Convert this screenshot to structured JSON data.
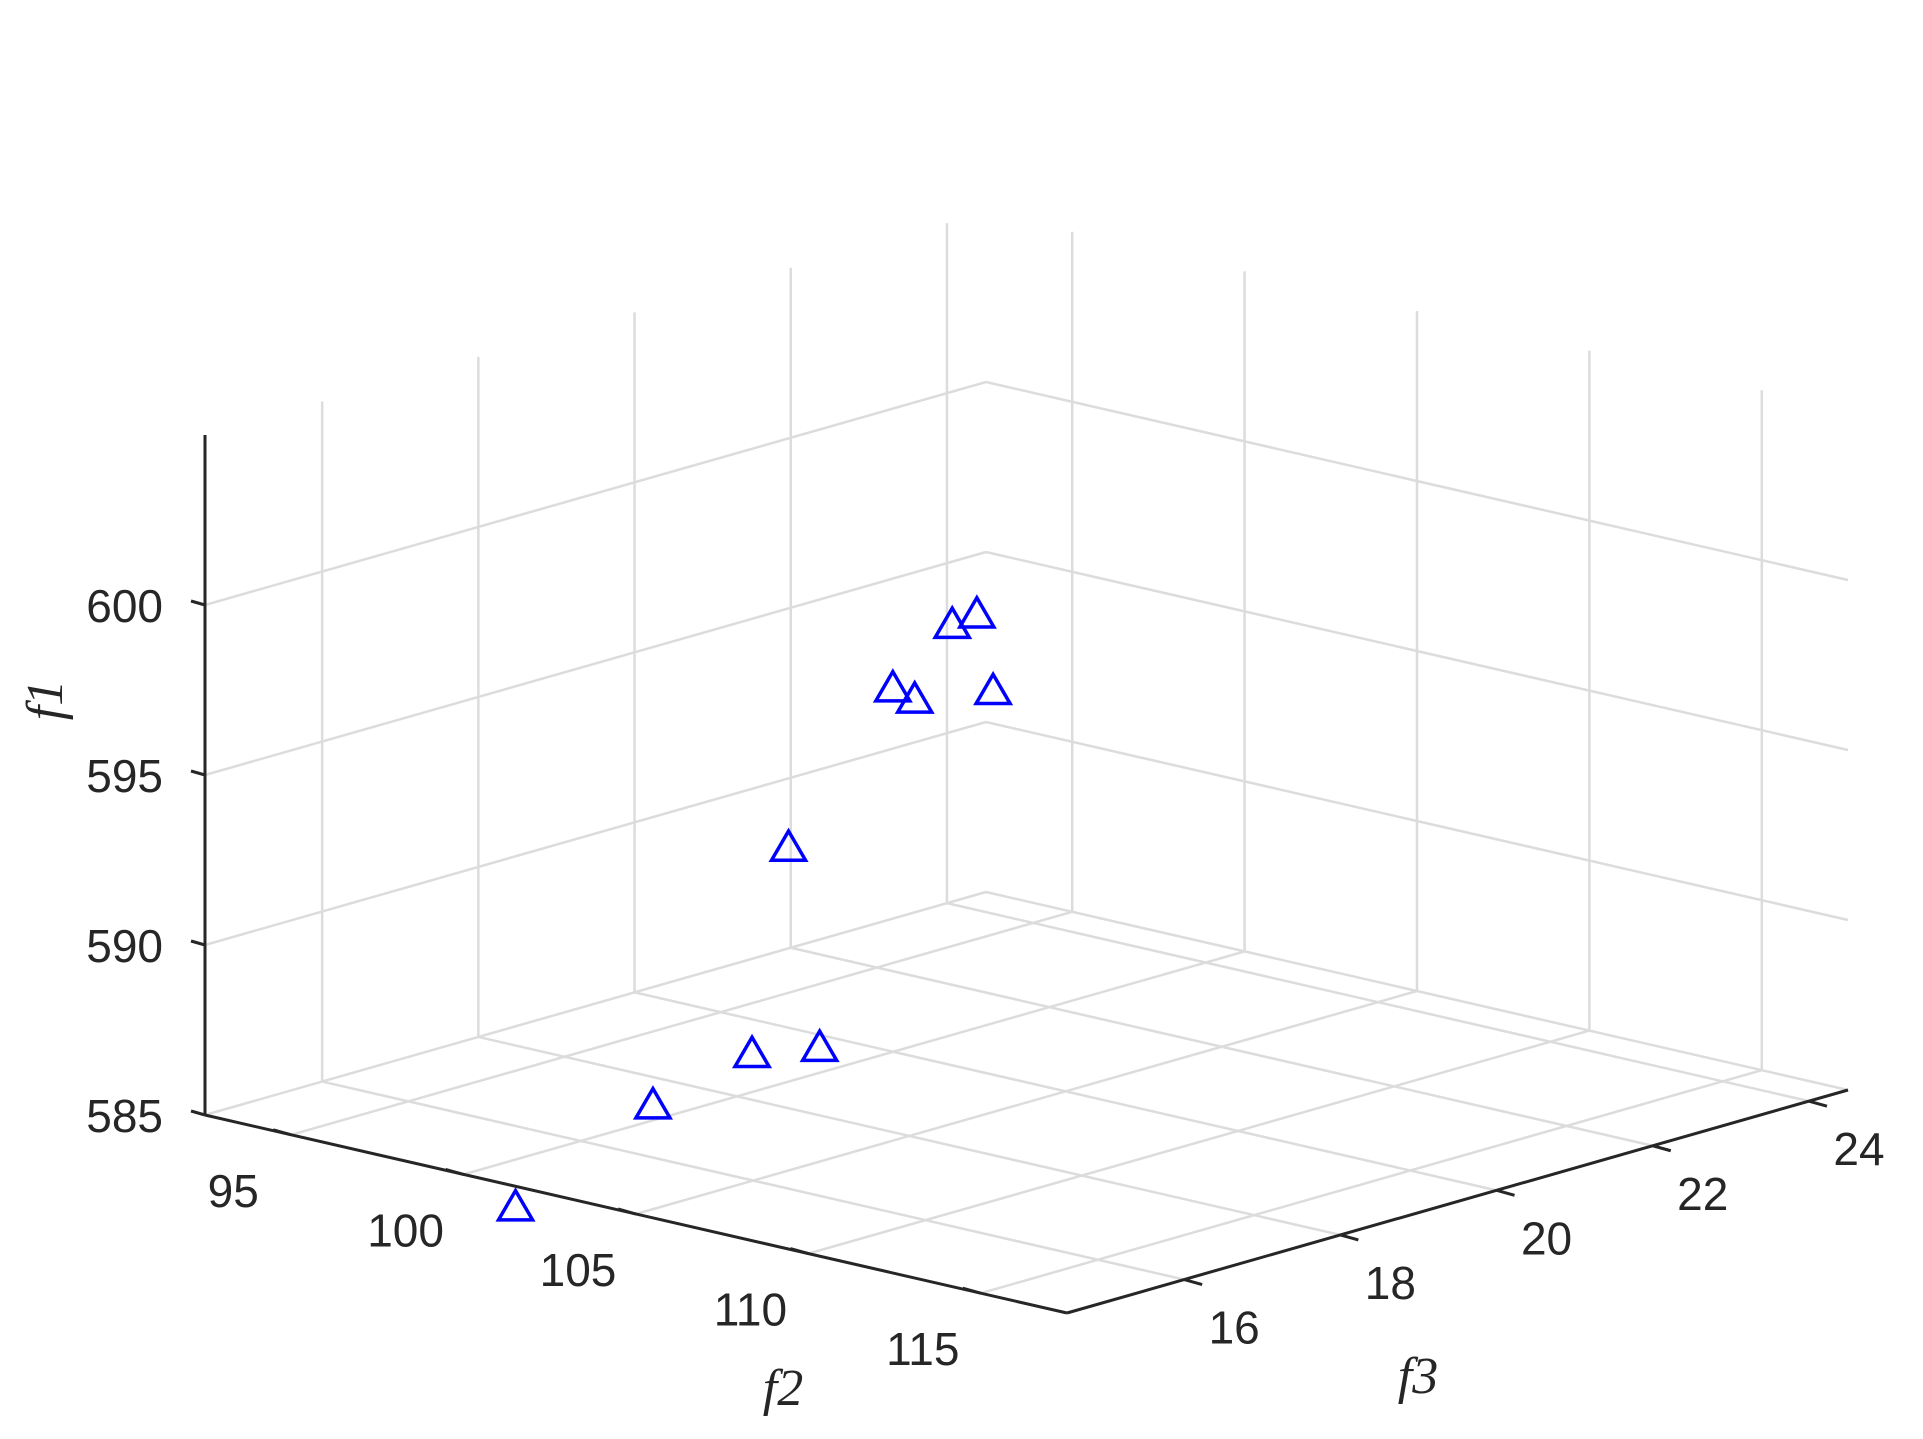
{
  "chart_data": {
    "type": "scatter",
    "title": "",
    "xlabel": "f2",
    "ylabel": "f3",
    "zlabel": "f1",
    "xlim": [
      92.5,
      117.5
    ],
    "ylim": [
      14.5,
      24.5
    ],
    "zlim": [
      585,
      605
    ],
    "x_ticks": [
      "95",
      "100",
      "105",
      "110",
      "115"
    ],
    "y_ticks": [
      "16",
      "18",
      "20",
      "22",
      "24"
    ],
    "z_ticks": [
      "585",
      "590",
      "595",
      "600"
    ],
    "grid": true,
    "marker": "triangle",
    "series": [
      {
        "name": "",
        "color": "#0000ff",
        "points": [
          {
            "x": 113.3,
            "y": 15.2,
            "z": 604.1
          },
          {
            "x": 111.0,
            "y": 15.9,
            "z": 602.8
          },
          {
            "x": 110.6,
            "y": 16.6,
            "z": 600.3
          },
          {
            "x": 108.1,
            "y": 16.7,
            "z": 599.4
          },
          {
            "x": 105.2,
            "y": 17.7,
            "z": 598.4
          },
          {
            "x": 105.8,
            "y": 16.1,
            "z": 594.9
          },
          {
            "x": 110.1,
            "y": 14.6,
            "z": 591.0
          },
          {
            "x": 106.1,
            "y": 15.5,
            "z": 589.3
          },
          {
            "x": 103.0,
            "y": 15.6,
            "z": 587.0
          },
          {
            "x": 100.6,
            "y": 14.9,
            "z": 583.9
          }
        ]
      }
    ]
  }
}
